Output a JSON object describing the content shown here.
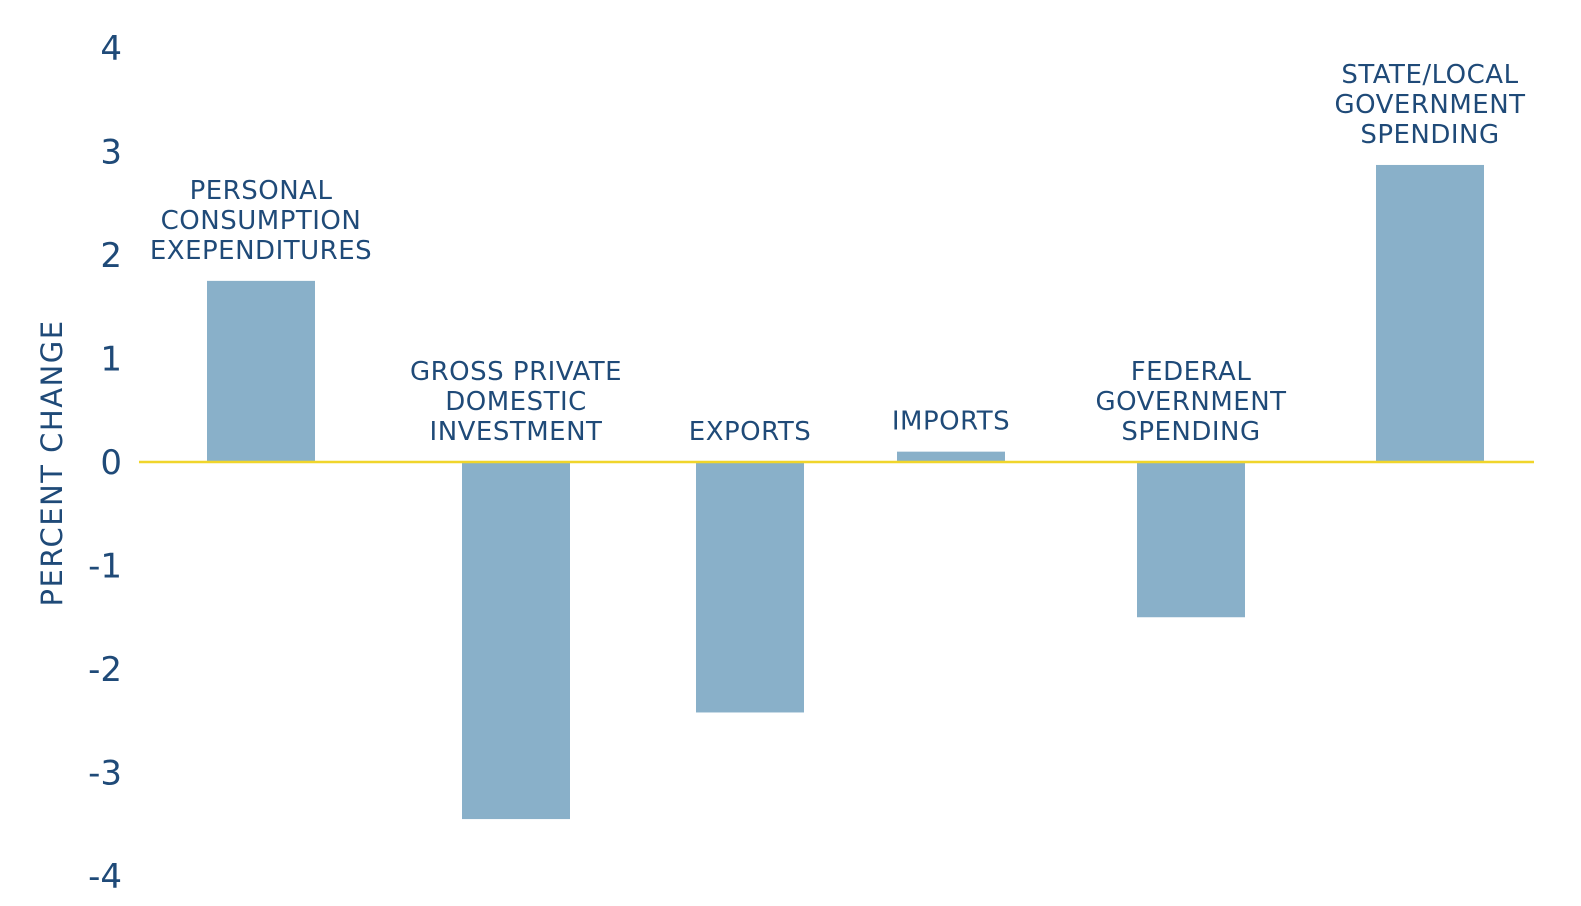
{
  "chart_data": {
    "type": "bar",
    "title": "",
    "xlabel": "",
    "ylabel": "PERCENT CHANGE",
    "ylim": [
      -4,
      4
    ],
    "yticks": [
      "4",
      "3",
      "2",
      "1",
      "0",
      "-1",
      "-2",
      "-3",
      "-4"
    ],
    "grid": false,
    "categories": [
      [
        "PERSONAL",
        "CONSUMPTION",
        "EXEPENDITURES"
      ],
      [
        "GROSS PRIVATE",
        "DOMESTIC",
        "INVESTMENT"
      ],
      [
        "EXPORTS"
      ],
      [
        "IMPORTS"
      ],
      [
        "FEDERAL",
        "GOVERNMENT",
        "SPENDING"
      ],
      [
        "STATE/LOCAL",
        "GOVERNMENT",
        "SPENDING"
      ]
    ],
    "values": [
      1.75,
      -3.45,
      -2.42,
      0.1,
      -1.5,
      2.87
    ],
    "colors": {
      "bar": "#89b0c9",
      "zero_line": "#f0d52b",
      "text": "#1f4a78"
    }
  }
}
